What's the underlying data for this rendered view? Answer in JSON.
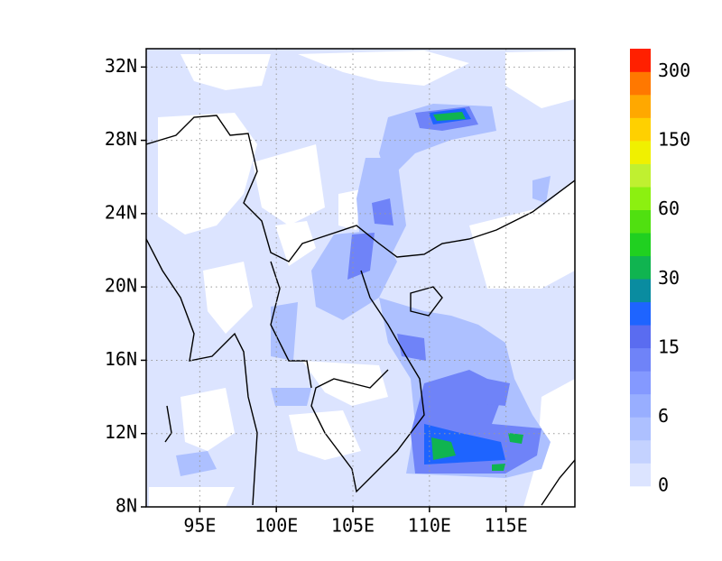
{
  "map": {
    "xlim": [
      91.5,
      119.5
    ],
    "ylim": [
      8,
      33
    ],
    "xticks": [
      {
        "value": 95,
        "label": "95E"
      },
      {
        "value": 100,
        "label": "100E"
      },
      {
        "value": 105,
        "label": "105E"
      },
      {
        "value": 110,
        "label": "110E"
      },
      {
        "value": 115,
        "label": "115E"
      }
    ],
    "yticks": [
      {
        "value": 8,
        "label": "8N"
      },
      {
        "value": 12,
        "label": "12N"
      },
      {
        "value": 16,
        "label": "16N"
      },
      {
        "value": 20,
        "label": "20N"
      },
      {
        "value": 24,
        "label": "24N"
      },
      {
        "value": 28,
        "label": "28N"
      },
      {
        "value": 32,
        "label": "32N"
      }
    ],
    "grid": true,
    "colorbar": {
      "colors": [
        "#dce4ff",
        "#c4d2ff",
        "#adc0ff",
        "#98aeff",
        "#8499ff",
        "#6f83f8",
        "#5a6cf0",
        "#1e64ff",
        "#0a8ca0",
        "#10b450",
        "#20d020",
        "#50e010",
        "#8cf010",
        "#c0f030",
        "#f0f000",
        "#ffd000",
        "#ffa800",
        "#ff7800",
        "#ff2000"
      ],
      "labels": [
        "0",
        "6",
        "15",
        "30",
        "60",
        "150",
        "300"
      ]
    }
  }
}
